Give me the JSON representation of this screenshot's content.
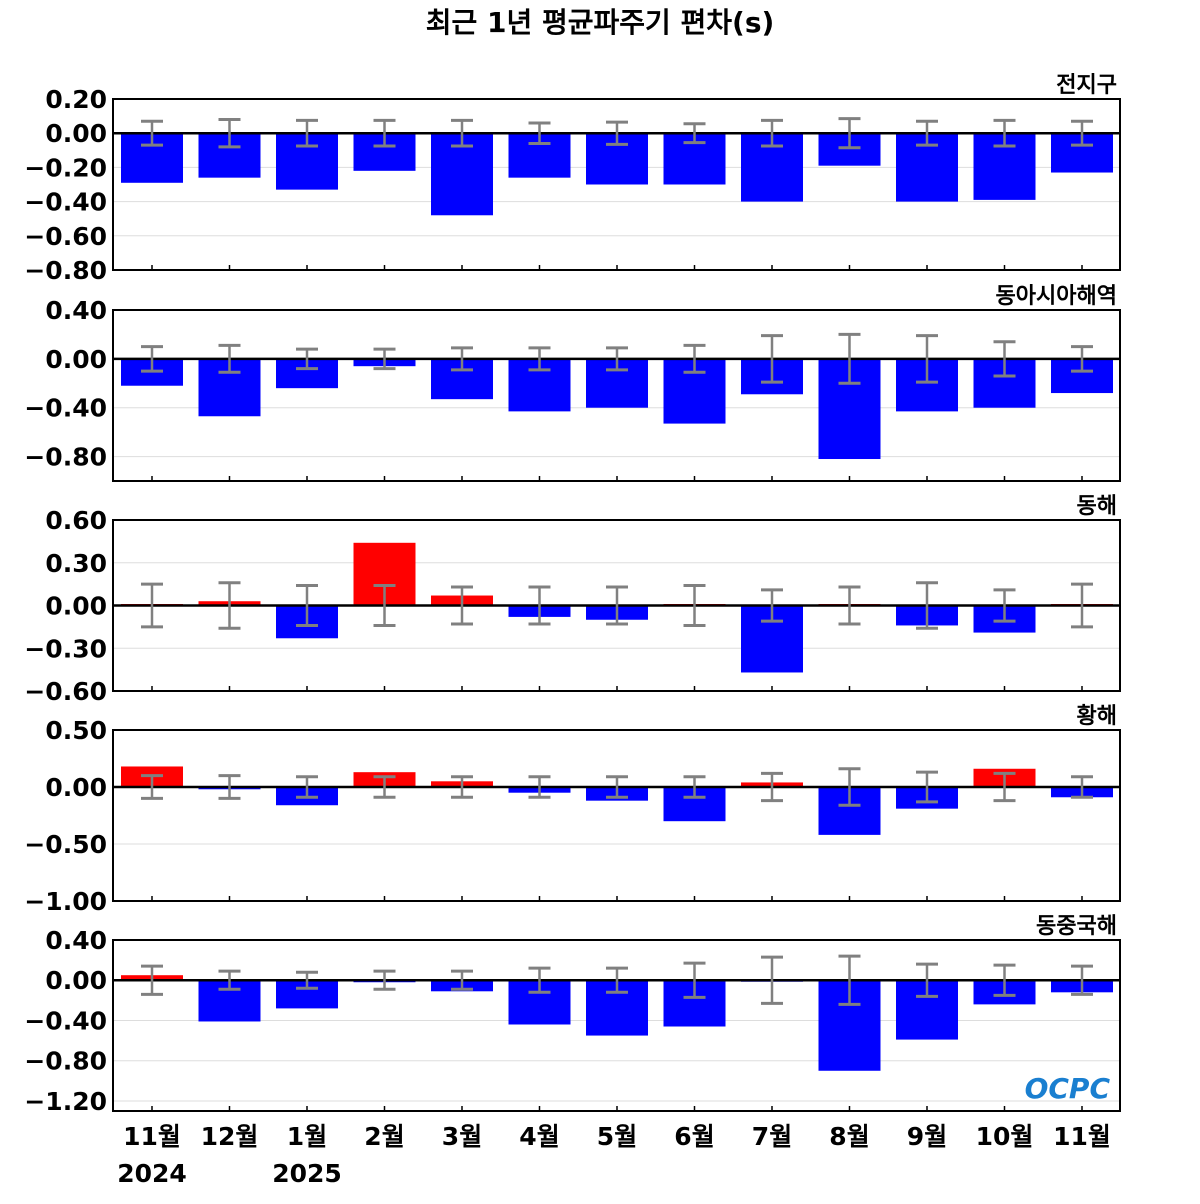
{
  "chart_data": {
    "type": "bar",
    "title": "최근 1년 평균파주기 편차(s)",
    "categories": [
      "11월",
      "12월",
      "1월",
      "2월",
      "3월",
      "4월",
      "5월",
      "6월",
      "7월",
      "8월",
      "9월",
      "10월",
      "11월"
    ],
    "year_labels": [
      {
        "index": 0,
        "label": "2024"
      },
      {
        "index": 2,
        "label": "2025"
      }
    ],
    "logo": "OCPC",
    "colors": {
      "positive": "#ff0000",
      "negative": "#0000ff",
      "errorbar": "#808080",
      "grid": "#dddddd"
    },
    "panels": [
      {
        "name": "전지구",
        "ylim": [
          -0.8,
          0.2
        ],
        "ticks": [
          0.2,
          0.0,
          -0.2,
          -0.4,
          -0.6,
          -0.8
        ],
        "values": [
          -0.29,
          -0.26,
          -0.33,
          -0.22,
          -0.48,
          -0.26,
          -0.3,
          -0.3,
          -0.4,
          -0.19,
          -0.4,
          -0.39,
          -0.23
        ],
        "errors": [
          0.07,
          0.08,
          0.075,
          0.075,
          0.075,
          0.06,
          0.065,
          0.055,
          0.075,
          0.085,
          0.07,
          0.075,
          0.07
        ]
      },
      {
        "name": "동아시아해역",
        "ylim": [
          -1.0,
          0.4
        ],
        "ticks": [
          0.4,
          0.0,
          -0.4,
          -0.8
        ],
        "values": [
          -0.22,
          -0.47,
          -0.24,
          -0.06,
          -0.33,
          -0.43,
          -0.4,
          -0.53,
          -0.29,
          -0.82,
          -0.43,
          -0.4,
          -0.28
        ],
        "errors": [
          0.1,
          0.11,
          0.08,
          0.08,
          0.09,
          0.09,
          0.09,
          0.11,
          0.19,
          0.2,
          0.19,
          0.14,
          0.1
        ]
      },
      {
        "name": "동해",
        "ylim": [
          -0.6,
          0.6
        ],
        "ticks": [
          0.6,
          0.3,
          0.0,
          -0.3,
          -0.6
        ],
        "values": [
          0.0,
          0.03,
          -0.23,
          0.44,
          0.07,
          -0.08,
          -0.1,
          0.005,
          -0.47,
          0.01,
          -0.14,
          -0.19,
          0.0
        ],
        "errors": [
          0.15,
          0.16,
          0.14,
          0.14,
          0.13,
          0.13,
          0.13,
          0.14,
          0.11,
          0.13,
          0.16,
          0.11,
          0.15
        ]
      },
      {
        "name": "황해",
        "ylim": [
          -1.0,
          0.5
        ],
        "ticks": [
          0.5,
          0.0,
          -0.5,
          -1.0
        ],
        "values": [
          0.18,
          -0.02,
          -0.16,
          0.13,
          0.05,
          -0.05,
          -0.12,
          -0.3,
          0.04,
          -0.42,
          -0.19,
          0.16,
          -0.09
        ],
        "errors": [
          0.1,
          0.1,
          0.09,
          0.09,
          0.09,
          0.09,
          0.09,
          0.09,
          0.12,
          0.16,
          0.13,
          0.12,
          0.09
        ]
      },
      {
        "name": "동중국해",
        "ylim": [
          -1.3,
          0.4
        ],
        "ticks": [
          0.4,
          0.0,
          -0.4,
          -0.8,
          -1.2
        ],
        "values": [
          0.05,
          -0.41,
          -0.28,
          -0.02,
          -0.11,
          -0.44,
          -0.55,
          -0.46,
          -0.01,
          -0.9,
          -0.59,
          -0.24,
          -0.12
        ],
        "errors": [
          0.14,
          0.09,
          0.08,
          0.09,
          0.09,
          0.12,
          0.12,
          0.17,
          0.23,
          0.24,
          0.16,
          0.15,
          0.14
        ]
      }
    ]
  }
}
